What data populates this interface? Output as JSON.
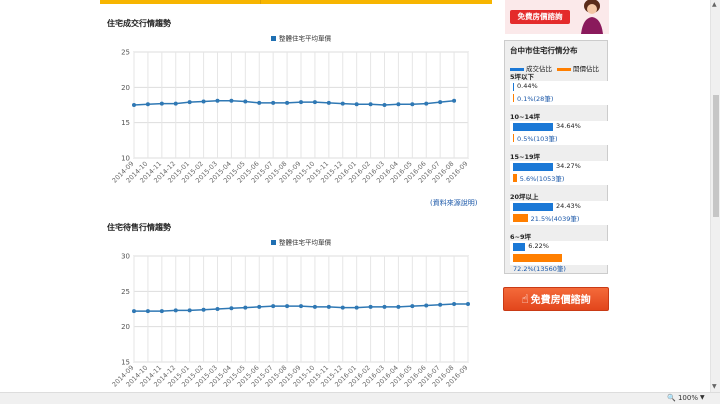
{
  "sections": {
    "deal_title": "住宅成交行情趨勢",
    "listing_title": "住宅待售行情趨勢",
    "source_link": "(資料來源說明)"
  },
  "banner": {
    "button_label": "免費房價諮詢"
  },
  "distribution": {
    "title": "台中市住宅行情分布",
    "legend_deal": "成交佔比",
    "legend_listing": "開價佔比",
    "colors": {
      "deal": "#1a78d6",
      "listing": "#ff7f00"
    },
    "groups": [
      {
        "label": "5坪以下",
        "deal_pct": 0.44,
        "deal_text": "0.44%",
        "listing_pct": 0.1,
        "listing_text": "0.1%(28筆)"
      },
      {
        "label": "10~14坪",
        "deal_pct": 34.64,
        "deal_text": "34.64%",
        "listing_pct": 0.5,
        "listing_text": "0.5%(103筆)"
      },
      {
        "label": "15~19坪",
        "deal_pct": 34.27,
        "deal_text": "34.27%",
        "listing_pct": 5.6,
        "listing_text": "5.6%(1053筆)"
      },
      {
        "label": "20坪以上",
        "deal_pct": 24.43,
        "deal_text": "24.43%",
        "listing_pct": 21.5,
        "listing_text": "21.5%(4039筆)"
      },
      {
        "label": "6~9坪",
        "deal_pct": 6.22,
        "deal_text": "6.22%",
        "listing_pct": 72.2,
        "listing_text": "72.2%(13560筆)"
      }
    ]
  },
  "cta": {
    "label": "免費房價諮詢"
  },
  "statusbar": {
    "zoom": "100%"
  },
  "chart_data": [
    {
      "type": "line",
      "legend": "整體住宅平均單價",
      "x": [
        "2014-09",
        "2014-10",
        "2014-11",
        "2014-12",
        "2015-01",
        "2015-02",
        "2015-03",
        "2015-04",
        "2015-05",
        "2015-06",
        "2015-07",
        "2015-08",
        "2015-09",
        "2015-10",
        "2015-11",
        "2015-12",
        "2016-01",
        "2016-02",
        "2016-03",
        "2016-04",
        "2016-05",
        "2016-06",
        "2016-07",
        "2016-08",
        "2016-09"
      ],
      "y": [
        17.5,
        17.6,
        17.7,
        17.7,
        17.9,
        18.0,
        18.1,
        18.1,
        18.0,
        17.8,
        17.8,
        17.8,
        17.9,
        17.9,
        17.8,
        17.7,
        17.6,
        17.6,
        17.5,
        17.6,
        17.6,
        17.7,
        17.9,
        18.1,
        null
      ],
      "ylim": [
        10,
        25
      ],
      "yticks": [
        "25",
        "20",
        "15",
        "10"
      ],
      "grid": true,
      "legend_position": "top-center"
    },
    {
      "type": "line",
      "legend": "整體住宅平均單價",
      "x": [
        "2014-09",
        "2014-10",
        "2014-11",
        "2014-12",
        "2015-01",
        "2015-02",
        "2015-03",
        "2015-04",
        "2015-05",
        "2015-06",
        "2015-07",
        "2015-08",
        "2015-09",
        "2015-10",
        "2015-11",
        "2015-12",
        "2016-01",
        "2016-02",
        "2016-03",
        "2016-04",
        "2016-05",
        "2016-06",
        "2016-07",
        "2016-08",
        "2016-09"
      ],
      "y": [
        22.2,
        22.2,
        22.2,
        22.3,
        22.3,
        22.4,
        22.5,
        22.6,
        22.7,
        22.8,
        22.9,
        22.9,
        22.9,
        22.8,
        22.8,
        22.7,
        22.7,
        22.8,
        22.8,
        22.8,
        22.9,
        23.0,
        23.1,
        23.2,
        23.2
      ],
      "ylim": [
        15,
        30
      ],
      "yticks": [
        "30",
        "25",
        "20",
        "15"
      ],
      "grid": true,
      "legend_position": "top-center"
    }
  ]
}
